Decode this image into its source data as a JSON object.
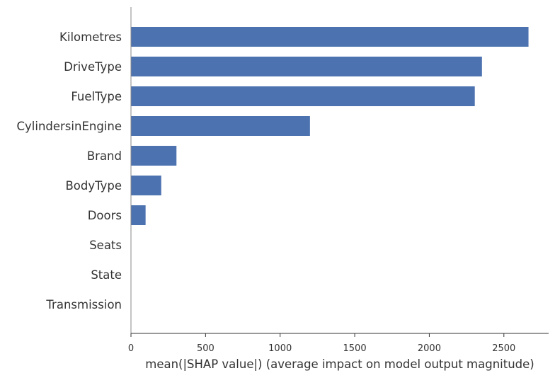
{
  "chart_data": {
    "type": "bar",
    "orientation": "horizontal",
    "categories": [
      "Kilometres",
      "DriveType",
      "FuelType",
      "CylindersinEngine",
      "Brand",
      "BodyType",
      "Doors",
      "Seats",
      "State",
      "Transmission"
    ],
    "values": [
      2665,
      2353,
      2305,
      1200,
      305,
      203,
      98,
      2,
      1,
      1
    ],
    "xlabel": "mean(|SHAP value|) (average impact on model output magnitude)",
    "ylabel": "",
    "xlim": [
      0,
      2800
    ],
    "xticks": [
      0,
      500,
      1000,
      1500,
      2000,
      2500
    ],
    "xtick_labels": [
      "0",
      "500",
      "1000",
      "1500",
      "2000",
      "2500"
    ],
    "bar_color": "#4c72b0",
    "grid": false
  }
}
